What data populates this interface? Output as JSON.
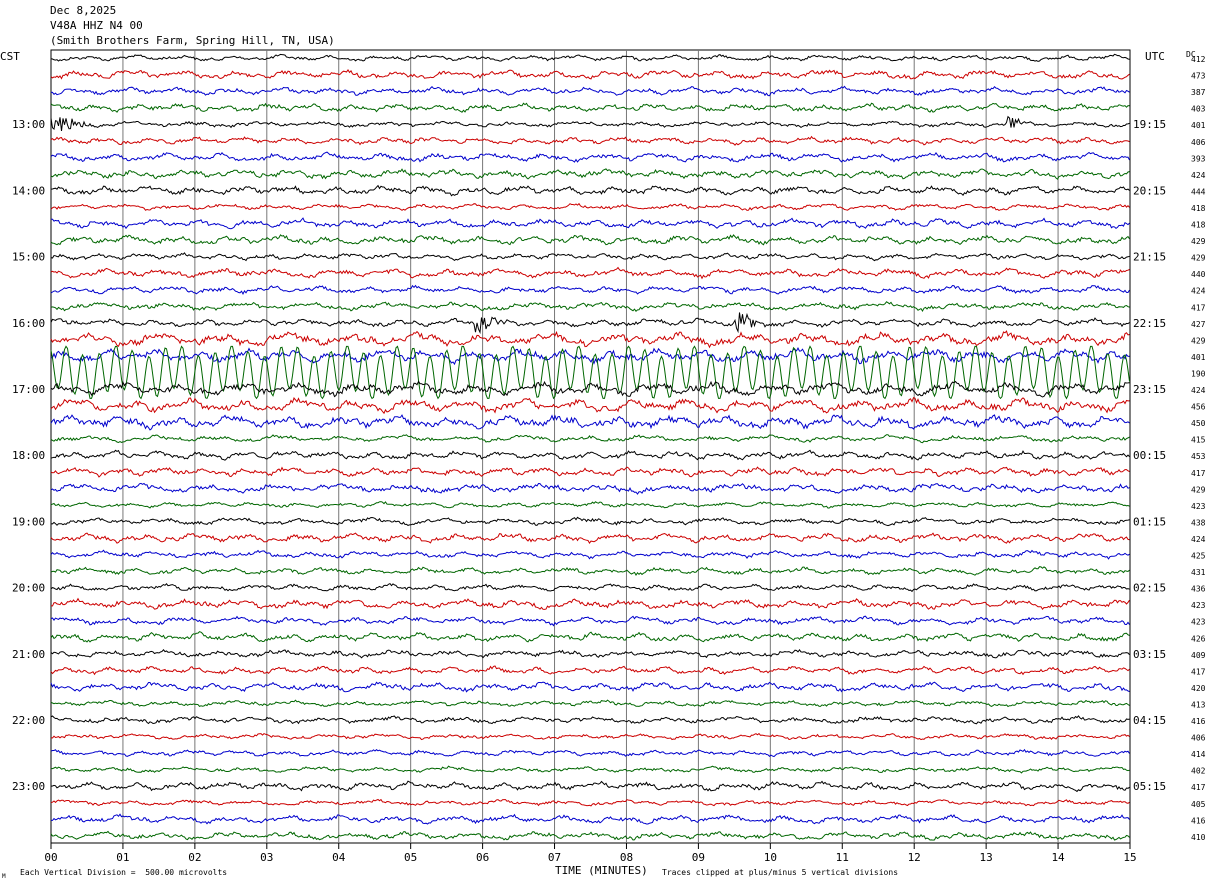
{
  "header": {
    "date": "Dec 8,2025",
    "station": "V48A HHZ N4 00",
    "location": "(Smith Brothers Farm, Spring Hill, TN, USA)"
  },
  "left_tz": "CST",
  "right_tz": "UTC",
  "dc_label": "DC",
  "footer": {
    "scale_note": "Each Vertical Division =  500.00 microvolts",
    "xlabel": "TIME (MINUTES)",
    "clip_note": "Traces clipped at plus/minus 5 vertical divisions",
    "corner_mark": "M"
  },
  "colors": {
    "black": "#000000",
    "red": "#cc0000",
    "blue": "#0000cc",
    "green": "#006600",
    "grid": "#777777"
  },
  "chart_data": {
    "type": "line",
    "xlabel": "TIME (MINUTES)",
    "xlim": [
      0,
      15
    ],
    "x_ticks": [
      "00",
      "01",
      "02",
      "03",
      "04",
      "05",
      "06",
      "07",
      "08",
      "09",
      "10",
      "11",
      "12",
      "13",
      "14",
      "15"
    ],
    "trace_color_cycle": [
      "black",
      "red",
      "blue",
      "green"
    ],
    "left_time_labels": [
      "13:00",
      "14:00",
      "15:00",
      "16:00",
      "17:00",
      "18:00",
      "19:00",
      "20:00",
      "21:00",
      "22:00",
      "23:00"
    ],
    "right_time_labels": [
      "19:15",
      "20:15",
      "21:15",
      "22:15",
      "23:15",
      "00:15",
      "01:15",
      "02:15",
      "03:15",
      "04:15",
      "05:15"
    ],
    "dc_offsets": [
      412,
      473,
      387,
      403,
      401,
      406,
      393,
      424,
      444,
      418,
      418,
      429,
      429,
      440,
      424,
      417,
      427,
      429,
      401,
      190,
      424,
      456,
      450,
      415,
      453,
      417,
      429,
      423,
      438,
      424,
      425,
      431,
      436,
      423,
      423,
      426,
      409,
      417,
      420,
      413,
      416,
      406,
      414,
      402,
      417,
      405,
      416,
      410
    ],
    "annotations": [
      {
        "trace": 4,
        "minute_start": 0.0,
        "minute_end": 0.6,
        "description": "large burst"
      },
      {
        "trace": 4,
        "minute_start": 13.3,
        "minute_end": 13.5,
        "description": "spike"
      },
      {
        "trace": 16,
        "minute_start": 5.9,
        "minute_end": 6.3,
        "description": "burst"
      },
      {
        "trace": 16,
        "minute_start": 9.5,
        "minute_end": 9.9,
        "description": "burst"
      },
      {
        "trace": 19,
        "minute_start": 0.0,
        "minute_end": 15.0,
        "description": "large clipped oscillation"
      }
    ]
  }
}
